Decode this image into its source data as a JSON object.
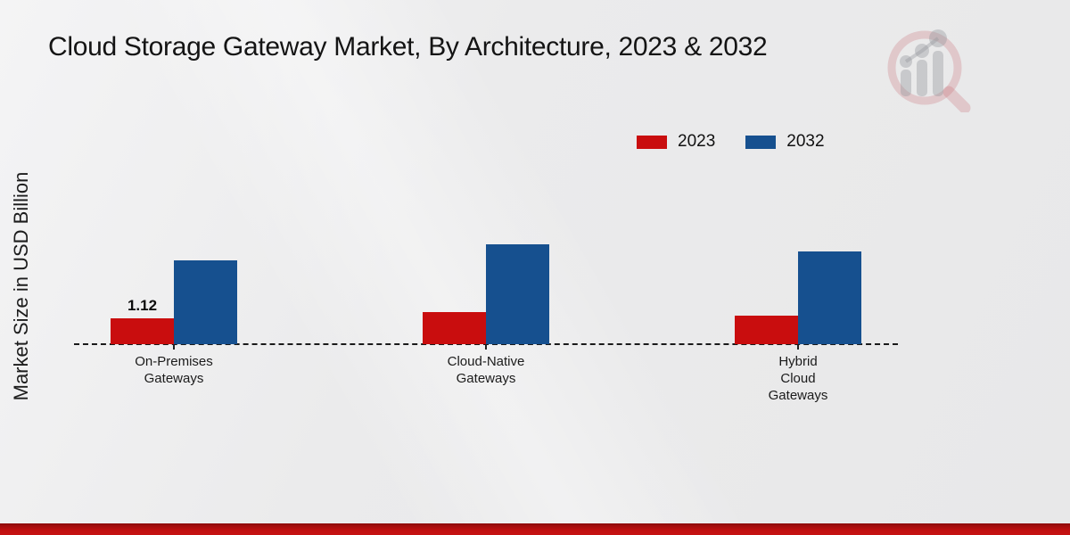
{
  "chart_data": {
    "type": "bar",
    "title": "Cloud Storage Gateway Market, By Architecture, 2023 & 2032",
    "ylabel": "Market Size in USD Billion",
    "xlabel": "",
    "categories": [
      [
        "On-Premises",
        "Gateways"
      ],
      [
        "Cloud-Native",
        "Gateways"
      ],
      [
        "Hybrid",
        "Cloud",
        "Gateways"
      ]
    ],
    "series": [
      {
        "name": "2023",
        "color": "#c90d0e",
        "values": [
          1.12,
          1.39,
          1.24
        ],
        "labels": [
          "1.12",
          "",
          ""
        ]
      },
      {
        "name": "2032",
        "color": "#16508f",
        "values": [
          3.6,
          4.3,
          4.0
        ],
        "labels": [
          "",
          "",
          ""
        ]
      }
    ],
    "ylim": [
      0,
      5
    ],
    "grid": false,
    "legend_position": "top-right",
    "baseline_style": "dashed",
    "shown_data_labels": [
      {
        "series": "2023",
        "category": "On-Premises Gateways",
        "text": "1.12"
      }
    ]
  },
  "footer": {
    "accent_bar_color": "#c01010"
  },
  "watermark": {
    "icon": "magnifier-bar-chart-logo"
  }
}
